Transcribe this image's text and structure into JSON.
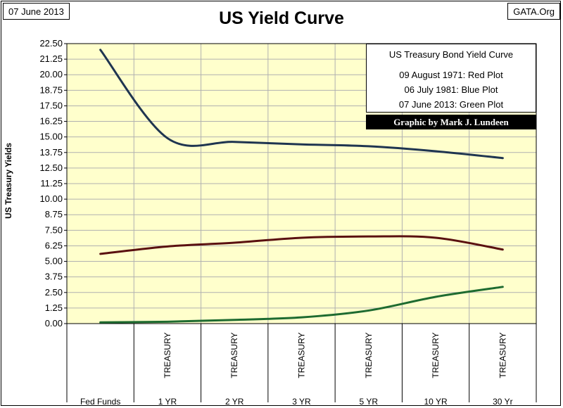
{
  "header": {
    "date_label": "07 June 2013",
    "title": "US Yield Curve",
    "source_label": "GATA.Org"
  },
  "legend": {
    "title": "US Treasury Bond Yield Curve",
    "lines": [
      "09 August 1971: Red Plot",
      "06 July 1981: Blue Plot",
      "07 June 2013: Green Plot"
    ],
    "credit": "Graphic by Mark J. Lundeen"
  },
  "colors": {
    "plot_background": "#ffffcc",
    "grid": "#b0b0b0",
    "red_series": "#5a1010",
    "blue_series": "#1f3550",
    "green_series": "#1e6b30"
  },
  "chart_data": {
    "type": "line",
    "title": "US Yield Curve",
    "xlabel": "",
    "ylabel": "US Treasury Yields",
    "ylim": [
      0,
      22.5
    ],
    "y_ticks": [
      "0.00",
      "1.25",
      "2.50",
      "3.75",
      "5.00",
      "6.25",
      "7.50",
      "8.75",
      "10.00",
      "11.25",
      "12.50",
      "13.75",
      "15.00",
      "16.25",
      "17.50",
      "18.75",
      "20.00",
      "21.25",
      "22.50"
    ],
    "categories": [
      {
        "line1": "",
        "line2": "Fed Funds"
      },
      {
        "line1": "TREASURY",
        "line2": "1 YR"
      },
      {
        "line1": "TREASURY",
        "line2": "2 YR"
      },
      {
        "line1": "TREASURY",
        "line2": "3 YR"
      },
      {
        "line1": "TREASURY",
        "line2": "5 YR"
      },
      {
        "line1": "TREASURY",
        "line2": "10 YR"
      },
      {
        "line1": "TREASURY",
        "line2": "30 Yr"
      }
    ],
    "grid": true,
    "legend_position": "top-right",
    "series": [
      {
        "name": "06 July 1981",
        "color_key": "blue_series",
        "values": [
          22.0,
          14.9,
          14.6,
          14.4,
          14.25,
          13.85,
          13.3
        ]
      },
      {
        "name": "09 August 1971",
        "color_key": "red_series",
        "values": [
          5.6,
          6.2,
          6.5,
          6.9,
          7.0,
          6.9,
          5.95
        ]
      },
      {
        "name": "07 June 2013",
        "color_key": "green_series",
        "values": [
          0.1,
          0.15,
          0.3,
          0.5,
          1.05,
          2.15,
          2.95
        ]
      }
    ]
  }
}
